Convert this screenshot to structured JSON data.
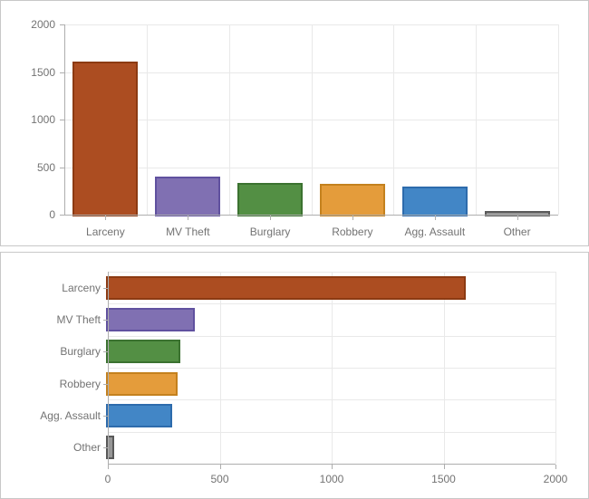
{
  "chart_data": [
    {
      "type": "bar",
      "orientation": "vertical",
      "title": "",
      "categories": [
        "Larceny",
        "MV Theft",
        "Burglary",
        "Robbery",
        "Agg. Assault",
        "Other"
      ],
      "values": [
        1590,
        380,
        315,
        305,
        280,
        20
      ],
      "bar_fill_colors": [
        "#ac4d21",
        "#8070b2",
        "#538f44",
        "#e49c3b",
        "#4286c6",
        "#969696"
      ],
      "bar_border_colors": [
        "#8c3a12",
        "#60519f",
        "#3b7230",
        "#c4811e",
        "#2d6bac",
        "#595959"
      ],
      "value_axis": {
        "min": 0,
        "max": 2000,
        "ticks": [
          0,
          500,
          1000,
          1500,
          2000
        ]
      },
      "grid": true,
      "legend": "none"
    },
    {
      "type": "bar",
      "orientation": "horizontal",
      "title": "",
      "categories": [
        "Larceny",
        "MV Theft",
        "Burglary",
        "Robbery",
        "Agg. Assault",
        "Other"
      ],
      "values": [
        1590,
        380,
        315,
        305,
        280,
        20
      ],
      "bar_fill_colors": [
        "#ac4d21",
        "#8070b2",
        "#538f44",
        "#e49c3b",
        "#4286c6",
        "#969696"
      ],
      "bar_border_colors": [
        "#8c3a12",
        "#60519f",
        "#3b7230",
        "#c4811e",
        "#2d6bac",
        "#595959"
      ],
      "value_axis": {
        "min": 0,
        "max": 2000,
        "ticks": [
          0,
          500,
          1000,
          1500,
          2000
        ]
      },
      "grid": true,
      "legend": "none"
    }
  ],
  "styles": {
    "grid_color": "#e9e9e9",
    "axis_color": "#aeaeae",
    "label_color": "#737373",
    "panel_border_color": "#c8c8c8",
    "background_color": "#ffffff"
  }
}
